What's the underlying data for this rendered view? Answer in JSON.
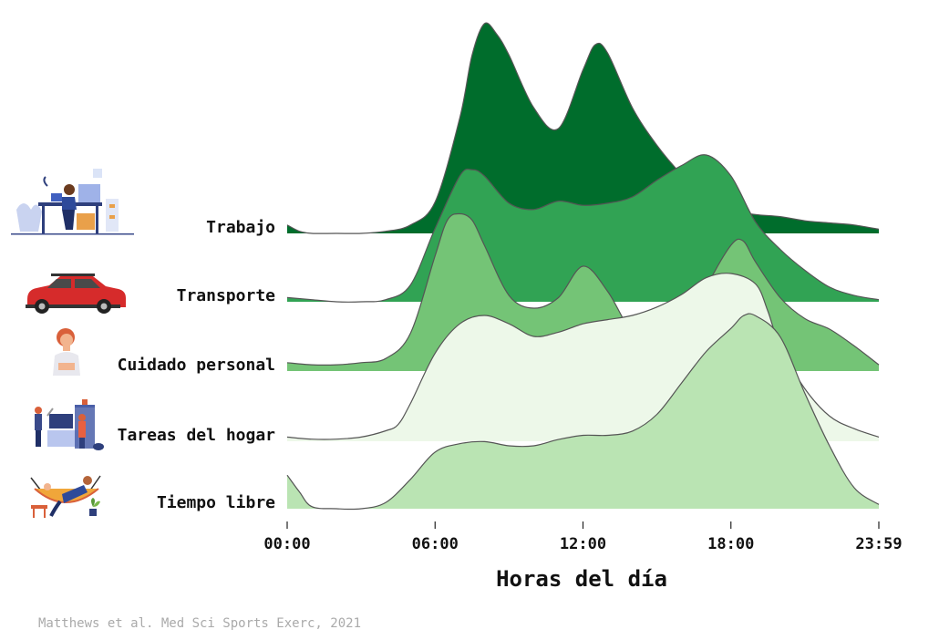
{
  "source": "Matthews et al. Med Sci Sports Exerc, 2021",
  "chart_data": {
    "type": "ridgeline",
    "xlabel": "Horas del día",
    "x_ticks": [
      "00:00",
      "06:00",
      "12:00",
      "18:00",
      "23:59"
    ],
    "x_tick_hours": [
      0,
      6,
      12,
      18,
      24
    ],
    "xlim": [
      0,
      24
    ],
    "series": [
      {
        "name": "Trabajo",
        "color": "#006d2c",
        "icon": "office-worker-icon",
        "x": [
          0,
          0.5,
          1,
          2,
          3,
          4,
          5,
          6,
          7,
          7.5,
          8,
          8.5,
          9,
          10,
          11,
          12,
          12.5,
          13,
          14,
          15,
          16,
          17,
          18,
          19,
          20,
          21,
          22,
          23,
          24
        ],
        "y": [
          0.04,
          0.01,
          0.0,
          0.0,
          0.0,
          0.01,
          0.04,
          0.15,
          0.55,
          0.85,
          1.0,
          0.95,
          0.85,
          0.6,
          0.5,
          0.78,
          0.9,
          0.86,
          0.6,
          0.42,
          0.28,
          0.17,
          0.11,
          0.09,
          0.08,
          0.06,
          0.05,
          0.04,
          0.02
        ]
      },
      {
        "name": "Transporte",
        "color": "#31a354",
        "icon": "car-icon",
        "x": [
          0,
          1,
          2,
          3,
          4,
          5,
          6,
          7,
          7.5,
          8,
          9,
          10,
          11,
          12,
          13,
          14,
          15,
          16,
          17,
          18,
          19,
          20,
          21,
          22,
          23,
          24
        ],
        "y": [
          0.02,
          0.01,
          0.0,
          0.0,
          0.01,
          0.08,
          0.35,
          0.6,
          0.63,
          0.6,
          0.47,
          0.44,
          0.48,
          0.46,
          0.47,
          0.5,
          0.58,
          0.65,
          0.7,
          0.6,
          0.38,
          0.25,
          0.15,
          0.07,
          0.03,
          0.01
        ]
      },
      {
        "name": "Cuidado personal",
        "color": "#74c476",
        "icon": "person-care-icon",
        "x": [
          0,
          1,
          2,
          3,
          4,
          5,
          6,
          6.5,
          7,
          7.5,
          8,
          9,
          10,
          11,
          12,
          13,
          14,
          15,
          16,
          17,
          18,
          18.5,
          19,
          20,
          21,
          22,
          23,
          24
        ],
        "y": [
          0.04,
          0.03,
          0.03,
          0.04,
          0.06,
          0.18,
          0.55,
          0.72,
          0.75,
          0.72,
          0.6,
          0.36,
          0.3,
          0.35,
          0.5,
          0.38,
          0.18,
          0.1,
          0.15,
          0.4,
          0.6,
          0.62,
          0.52,
          0.35,
          0.25,
          0.2,
          0.12,
          0.03
        ]
      },
      {
        "name": "Tareas del hogar",
        "color": "#edf8e9",
        "icon": "housework-icon",
        "x": [
          0,
          1,
          2,
          3,
          4,
          4.5,
          5,
          6,
          7,
          8,
          9,
          10,
          11,
          12,
          13,
          14,
          15,
          16,
          17,
          18,
          19,
          19.5,
          20,
          21,
          22,
          23,
          24
        ],
        "y": [
          0.02,
          0.01,
          0.01,
          0.02,
          0.05,
          0.08,
          0.18,
          0.42,
          0.56,
          0.6,
          0.56,
          0.5,
          0.52,
          0.56,
          0.58,
          0.6,
          0.64,
          0.7,
          0.78,
          0.8,
          0.75,
          0.62,
          0.45,
          0.25,
          0.12,
          0.06,
          0.02
        ]
      },
      {
        "name": "Tiempo libre",
        "color": "#bae4b3",
        "icon": "hammock-icon",
        "x": [
          0,
          0.5,
          1,
          2,
          3,
          4,
          5,
          6,
          7,
          8,
          9,
          10,
          11,
          12,
          13,
          14,
          15,
          16,
          17,
          18,
          18.5,
          19,
          20,
          21,
          22,
          23,
          24
        ],
        "y": [
          0.16,
          0.08,
          0.01,
          0.0,
          0.0,
          0.03,
          0.14,
          0.27,
          0.31,
          0.32,
          0.3,
          0.3,
          0.33,
          0.35,
          0.35,
          0.37,
          0.45,
          0.6,
          0.75,
          0.86,
          0.92,
          0.92,
          0.82,
          0.55,
          0.3,
          0.1,
          0.02
        ]
      }
    ]
  }
}
